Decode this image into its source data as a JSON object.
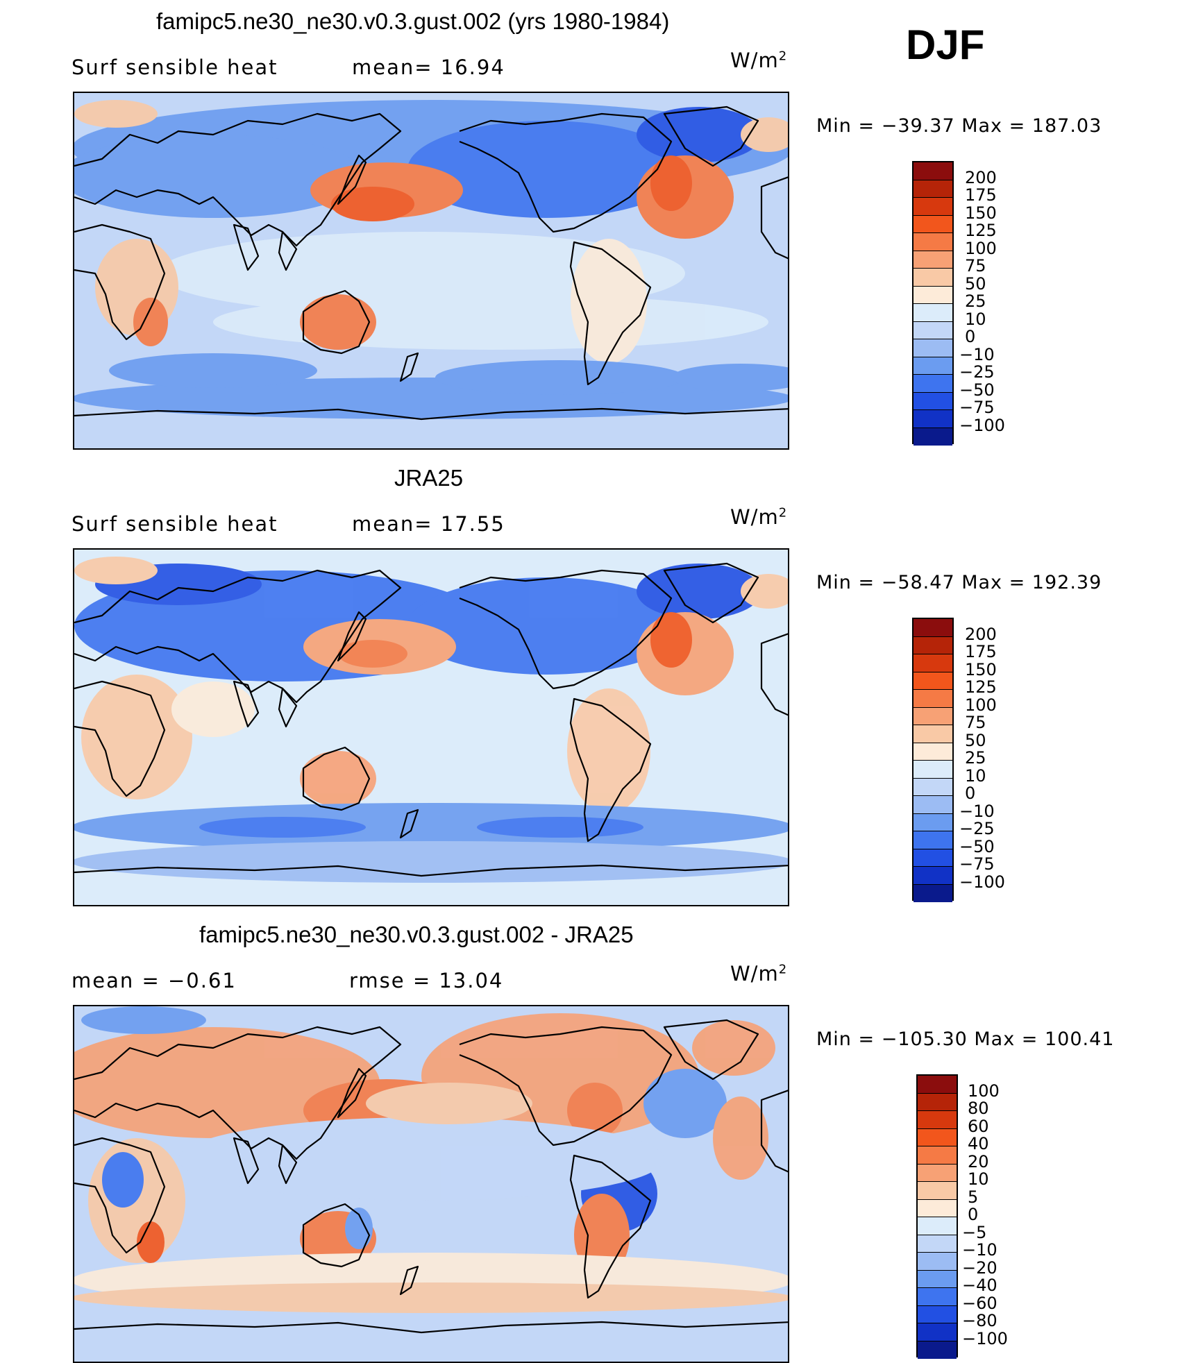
{
  "season": "DJF",
  "panels": [
    {
      "title": "famipc5.ne30_ne30.v0.3.gust.002 (yrs 1980-1984)",
      "left_label": "Surf  sensible heat",
      "mid_label": "mean=   16.94",
      "units": "W/m",
      "units_sup": "2",
      "minmax": "Min  =  −39.37  Max  =  187.03",
      "colorbar": {
        "levels": [
          "200",
          "175",
          "150",
          "125",
          "100",
          "75",
          "50",
          "25",
          "10",
          "0",
          "−10",
          "−25",
          "−50",
          "−75",
          "−100"
        ],
        "colors": [
          "#8b0d0d",
          "#b52408",
          "#d7390e",
          "#f2561c",
          "#f57a45",
          "#f7a175",
          "#f9c9a6",
          "#fdebd9",
          "#dcecfa",
          "#c3d7f7",
          "#9cbcf3",
          "#6b9cf0",
          "#3e74ef",
          "#2250e3",
          "#1132c6",
          "#0a1a8c"
        ]
      },
      "field": "model"
    },
    {
      "title": "JRA25",
      "left_label": "Surf  sensible heat",
      "mid_label": "mean=   17.55",
      "units": "W/m",
      "units_sup": "2",
      "minmax": "Min  =  −58.47  Max  =  192.39",
      "colorbar": {
        "levels": [
          "200",
          "175",
          "150",
          "125",
          "100",
          "75",
          "50",
          "25",
          "10",
          "0",
          "−10",
          "−25",
          "−50",
          "−75",
          "−100"
        ],
        "colors": [
          "#8b0d0d",
          "#b52408",
          "#d7390e",
          "#f2561c",
          "#f57a45",
          "#f7a175",
          "#f9c9a6",
          "#fdebd9",
          "#dcecfa",
          "#c3d7f7",
          "#9cbcf3",
          "#6b9cf0",
          "#3e74ef",
          "#2250e3",
          "#1132c6",
          "#0a1a8c"
        ]
      },
      "field": "obs"
    },
    {
      "title": "famipc5.ne30_ne30.v0.3.gust.002 - JRA25",
      "left_label": "mean  =    −0.61",
      "mid_label": "rmse  =    13.04",
      "units": "W/m",
      "units_sup": "2",
      "minmax": "Min  =  −105.30  Max  =  100.41",
      "colorbar": {
        "levels": [
          "100",
          "80",
          "60",
          "40",
          "20",
          "10",
          "5",
          "0",
          "−5",
          "−10",
          "−20",
          "−40",
          "−60",
          "−80",
          "−100"
        ],
        "colors": [
          "#8b0d0d",
          "#b52408",
          "#d7390e",
          "#f2561c",
          "#f57a45",
          "#f7a175",
          "#f9c9a6",
          "#fdebd9",
          "#dcecfa",
          "#c3d7f7",
          "#9cbcf3",
          "#6b9cf0",
          "#3e74ef",
          "#2250e3",
          "#1132c6",
          "#0a1a8c"
        ]
      },
      "field": "diff"
    }
  ]
}
